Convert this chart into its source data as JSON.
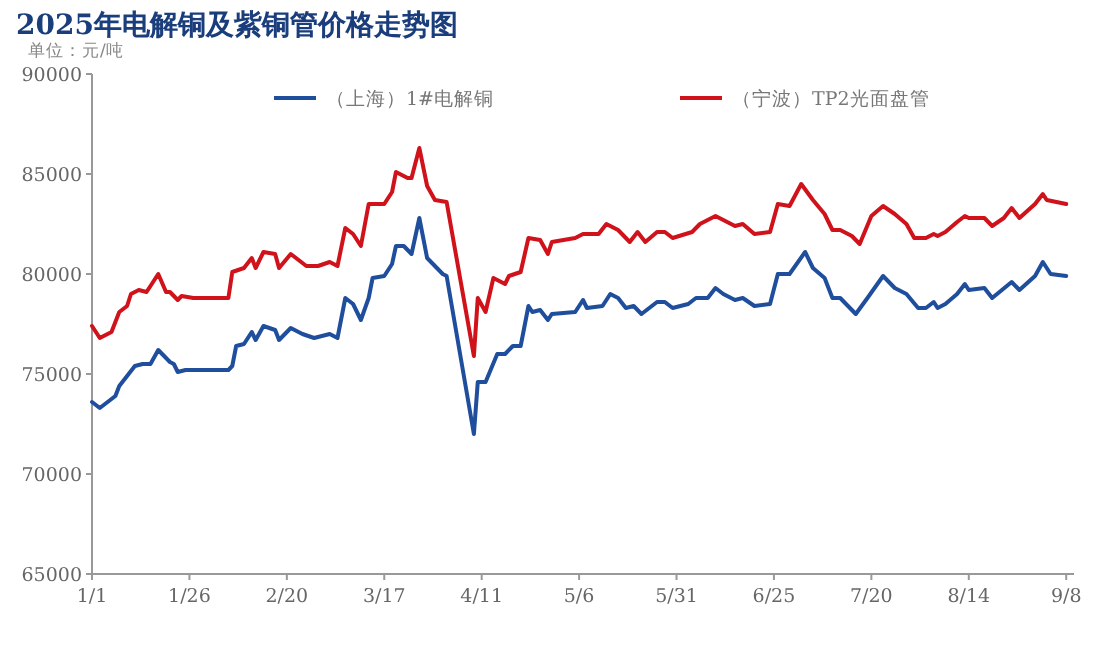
{
  "chart_data": {
    "type": "line",
    "title": "2025年电解铜及紫铜管价格走势图",
    "ylabel": "单位：元/吨",
    "legend": "top",
    "grid": false,
    "marker": "none",
    "line_style": "solid",
    "xlim": [
      "2025-01-01",
      "2025-09-10"
    ],
    "xticks": [
      {
        "value": "2025-01-01",
        "label": "1/1"
      },
      {
        "value": "2025-01-26",
        "label": "1/26"
      },
      {
        "value": "2025-02-20",
        "label": "2/20"
      },
      {
        "value": "2025-03-17",
        "label": "3/17"
      },
      {
        "value": "2025-04-11",
        "label": "4/11"
      },
      {
        "value": "2025-05-06",
        "label": "5/6"
      },
      {
        "value": "2025-05-31",
        "label": "5/31"
      },
      {
        "value": "2025-06-25",
        "label": "6/25"
      },
      {
        "value": "2025-07-20",
        "label": "7/20"
      },
      {
        "value": "2025-08-14",
        "label": "8/14"
      },
      {
        "value": "2025-09-08",
        "label": "9/8"
      }
    ],
    "ylim": [
      65000,
      90000
    ],
    "yticks": [
      65000,
      70000,
      75000,
      80000,
      85000,
      90000
    ],
    "series": [
      {
        "name": "（上海）1#电解铜",
        "color": "#1f4e9c",
        "x": [
          "2025-01-01",
          "2025-01-03",
          "2025-01-07",
          "2025-01-08",
          "2025-01-10",
          "2025-01-12",
          "2025-01-14",
          "2025-01-16",
          "2025-01-18",
          "2025-01-19",
          "2025-01-21",
          "2025-01-22",
          "2025-01-23",
          "2025-01-25",
          "2025-02-05",
          "2025-02-06",
          "2025-02-07",
          "2025-02-09",
          "2025-02-11",
          "2025-02-12",
          "2025-02-14",
          "2025-02-17",
          "2025-02-18",
          "2025-02-21",
          "2025-02-24",
          "2025-02-27",
          "2025-03-03",
          "2025-03-05",
          "2025-03-07",
          "2025-03-09",
          "2025-03-11",
          "2025-03-13",
          "2025-03-14",
          "2025-03-17",
          "2025-03-19",
          "2025-03-20",
          "2025-03-22",
          "2025-03-24",
          "2025-03-26",
          "2025-03-28",
          "2025-03-30",
          "2025-04-01",
          "2025-04-02",
          "2025-04-09",
          "2025-04-10",
          "2025-04-12",
          "2025-04-15",
          "2025-04-17",
          "2025-04-19",
          "2025-04-21",
          "2025-04-23",
          "2025-04-24",
          "2025-04-26",
          "2025-04-28",
          "2025-04-29",
          "2025-05-05",
          "2025-05-07",
          "2025-05-08",
          "2025-05-12",
          "2025-05-14",
          "2025-05-16",
          "2025-05-18",
          "2025-05-20",
          "2025-05-22",
          "2025-05-26",
          "2025-05-28",
          "2025-05-30",
          "2025-06-03",
          "2025-06-05",
          "2025-06-08",
          "2025-06-10",
          "2025-06-12",
          "2025-06-15",
          "2025-06-17",
          "2025-06-20",
          "2025-06-24",
          "2025-06-26",
          "2025-06-29",
          "2025-07-03",
          "2025-07-05",
          "2025-07-08",
          "2025-07-10",
          "2025-07-12",
          "2025-07-14",
          "2025-07-16",
          "2025-07-19",
          "2025-07-23",
          "2025-07-26",
          "2025-07-29",
          "2025-08-01",
          "2025-08-03",
          "2025-08-05",
          "2025-08-06",
          "2025-08-08",
          "2025-08-11",
          "2025-08-13",
          "2025-08-14",
          "2025-08-18",
          "2025-08-20",
          "2025-08-25",
          "2025-08-27",
          "2025-08-31",
          "2025-09-02",
          "2025-09-04",
          "2025-09-08"
        ],
        "values": [
          73600,
          73300,
          73900,
          74400,
          74900,
          75400,
          75500,
          75500,
          76200,
          76000,
          75600,
          75500,
          75100,
          75200,
          75200,
          75400,
          76400,
          76500,
          77100,
          76700,
          77400,
          77200,
          76700,
          77300,
          77000,
          76800,
          77000,
          76800,
          78800,
          78500,
          77700,
          78800,
          79800,
          79900,
          80500,
          81400,
          81400,
          81000,
          82800,
          80800,
          80400,
          80000,
          79900,
          72000,
          74600,
          74600,
          76000,
          76000,
          76400,
          76400,
          78400,
          78100,
          78200,
          77700,
          78000,
          78100,
          78700,
          78300,
          78400,
          79000,
          78800,
          78300,
          78400,
          78000,
          78600,
          78600,
          78300,
          78500,
          78800,
          78800,
          79300,
          79000,
          78700,
          78800,
          78400,
          78500,
          80000,
          80000,
          81100,
          80300,
          79800,
          78800,
          78800,
          78400,
          78000,
          78800,
          79900,
          79300,
          79000,
          78300,
          78300,
          78600,
          78300,
          78500,
          79000,
          79500,
          79200,
          79300,
          78800,
          79600,
          79200,
          79900,
          80600,
          80000,
          79900
        ]
      },
      {
        "name": "（宁波）TP2光面盘管",
        "color": "#d0121b",
        "x": [
          "2025-01-01",
          "2025-01-03",
          "2025-01-06",
          "2025-01-08",
          "2025-01-10",
          "2025-01-11",
          "2025-01-13",
          "2025-01-15",
          "2025-01-18",
          "2025-01-20",
          "2025-01-21",
          "2025-01-23",
          "2025-01-24",
          "2025-01-27",
          "2025-02-05",
          "2025-02-06",
          "2025-02-09",
          "2025-02-11",
          "2025-02-12",
          "2025-02-14",
          "2025-02-17",
          "2025-02-18",
          "2025-02-21",
          "2025-02-25",
          "2025-02-28",
          "2025-03-03",
          "2025-03-05",
          "2025-03-07",
          "2025-03-09",
          "2025-03-11",
          "2025-03-13",
          "2025-03-17",
          "2025-03-19",
          "2025-03-20",
          "2025-03-23",
          "2025-03-24",
          "2025-03-26",
          "2025-03-28",
          "2025-03-30",
          "2025-04-02",
          "2025-04-09",
          "2025-04-10",
          "2025-04-12",
          "2025-04-14",
          "2025-04-17",
          "2025-04-18",
          "2025-04-21",
          "2025-04-23",
          "2025-04-26",
          "2025-04-28",
          "2025-04-29",
          "2025-05-05",
          "2025-05-07",
          "2025-05-11",
          "2025-05-13",
          "2025-05-16",
          "2025-05-19",
          "2025-05-21",
          "2025-05-23",
          "2025-05-26",
          "2025-05-28",
          "2025-05-30",
          "2025-06-04",
          "2025-06-06",
          "2025-06-10",
          "2025-06-15",
          "2025-06-17",
          "2025-06-20",
          "2025-06-24",
          "2025-06-26",
          "2025-06-29",
          "2025-07-02",
          "2025-07-05",
          "2025-07-08",
          "2025-07-10",
          "2025-07-12",
          "2025-07-15",
          "2025-07-17",
          "2025-07-20",
          "2025-07-23",
          "2025-07-26",
          "2025-07-29",
          "2025-07-31",
          "2025-08-03",
          "2025-08-05",
          "2025-08-06",
          "2025-08-08",
          "2025-08-11",
          "2025-08-13",
          "2025-08-14",
          "2025-08-18",
          "2025-08-20",
          "2025-08-23",
          "2025-08-25",
          "2025-08-27",
          "2025-08-31",
          "2025-09-02",
          "2025-09-03",
          "2025-09-08"
        ],
        "values": [
          77400,
          76800,
          77100,
          78100,
          78400,
          79000,
          79200,
          79100,
          80000,
          79100,
          79100,
          78700,
          78900,
          78800,
          78800,
          80100,
          80300,
          80800,
          80300,
          81100,
          81000,
          80300,
          81000,
          80400,
          80400,
          80600,
          80400,
          82300,
          82000,
          81400,
          83500,
          83500,
          84100,
          85100,
          84800,
          84800,
          86300,
          84400,
          83700,
          83600,
          75900,
          78800,
          78100,
          79800,
          79500,
          79900,
          80100,
          81800,
          81700,
          81000,
          81600,
          81800,
          82000,
          82000,
          82500,
          82200,
          81600,
          82100,
          81600,
          82100,
          82100,
          81800,
          82100,
          82500,
          82900,
          82400,
          82500,
          82000,
          82100,
          83500,
          83400,
          84500,
          83700,
          83000,
          82200,
          82200,
          81900,
          81500,
          82900,
          83400,
          83000,
          82500,
          81800,
          81800,
          82000,
          81900,
          82100,
          82600,
          82900,
          82800,
          82800,
          82400,
          82800,
          83300,
          82800,
          83500,
          84000,
          83700,
          83500
        ]
      }
    ]
  }
}
